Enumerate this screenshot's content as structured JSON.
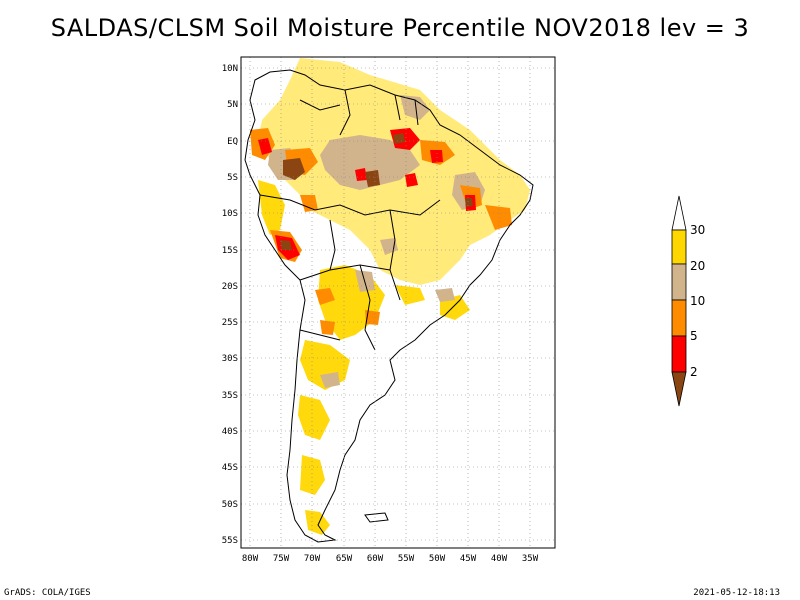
{
  "title": "SALDAS/CLSM Soil Moisture Percentile NOV2018 lev = 3",
  "footer": {
    "left": "GrADS: COLA/IGES",
    "right": "2021-05-12-18:13"
  },
  "map": {
    "region": "South America",
    "projection": "latlon",
    "lon_range": [
      -81,
      -31
    ],
    "lat_range": [
      -56,
      12
    ],
    "grid": "dotted",
    "lat_labels": [
      "10N",
      "5N",
      "EQ",
      "5S",
      "10S",
      "15S",
      "20S",
      "25S",
      "30S",
      "35S",
      "40S",
      "45S",
      "50S",
      "55S"
    ],
    "lon_labels": [
      "80W",
      "75W",
      "70W",
      "65W",
      "60W",
      "55W",
      "50W",
      "45W",
      "40W",
      "35W"
    ]
  },
  "legend": {
    "placement": "right",
    "colors": {
      "below_2": "#8b4513",
      "2_to_5": "#ff0000",
      "5_to_10": "#ff8c00",
      "10_to_20": "#d2b48c",
      "20_to_30": "#ffd700",
      "above_30": "#ffffff"
    },
    "labels": [
      "2",
      "5",
      "10",
      "20",
      "30"
    ]
  }
}
